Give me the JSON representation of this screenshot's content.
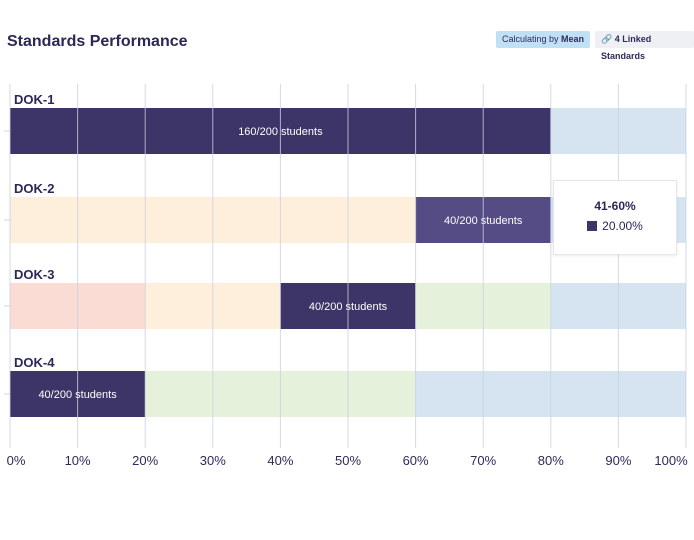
{
  "header": {
    "title": "Standards Performance",
    "calc_prefix": "Calculating by ",
    "calc_value": "Mean",
    "linked_icon": "link-icon",
    "linked_label": "4 Linked Standards"
  },
  "tooltip": {
    "title": "41-60%",
    "value": "20.00%",
    "swatch_color": "#3d3568"
  },
  "chart_data": {
    "type": "bar",
    "orientation": "horizontal",
    "stacked": true,
    "categories": [
      "DOK-1",
      "DOK-2",
      "DOK-3",
      "DOK-4"
    ],
    "xlim": [
      0,
      100
    ],
    "xticks": [
      "0%",
      "10%",
      "20%",
      "30%",
      "40%",
      "50%",
      "60%",
      "70%",
      "80%",
      "90%",
      "100%"
    ],
    "grid": true,
    "rows": [
      {
        "category": "DOK-1",
        "segments": [
          {
            "value": 80,
            "color": "#3d3568",
            "label": "160/200 students"
          },
          {
            "value": 20,
            "color": "#d6e4f2",
            "label": ""
          }
        ]
      },
      {
        "category": "DOK-2",
        "segments": [
          {
            "value": 60,
            "color": "#fdefdc",
            "label": ""
          },
          {
            "value": 20,
            "color": "#554b85",
            "label": "40/200 students"
          },
          {
            "value": 20,
            "color": "#d6e4f2",
            "label": ""
          }
        ]
      },
      {
        "category": "DOK-3",
        "segments": [
          {
            "value": 20,
            "color": "#fbdcd5",
            "label": ""
          },
          {
            "value": 20,
            "color": "#fdefdc",
            "label": ""
          },
          {
            "value": 20,
            "color": "#3d3568",
            "label": "40/200 students"
          },
          {
            "value": 20,
            "color": "#e6f1dc",
            "label": ""
          },
          {
            "value": 20,
            "color": "#d6e4f2",
            "label": ""
          }
        ]
      },
      {
        "category": "DOK-4",
        "segments": [
          {
            "value": 20,
            "color": "#3d3568",
            "label": "40/200 students"
          },
          {
            "value": 40,
            "color": "#e6f1dc",
            "label": ""
          },
          {
            "value": 40,
            "color": "#d6e4f2",
            "label": ""
          }
        ]
      }
    ]
  }
}
